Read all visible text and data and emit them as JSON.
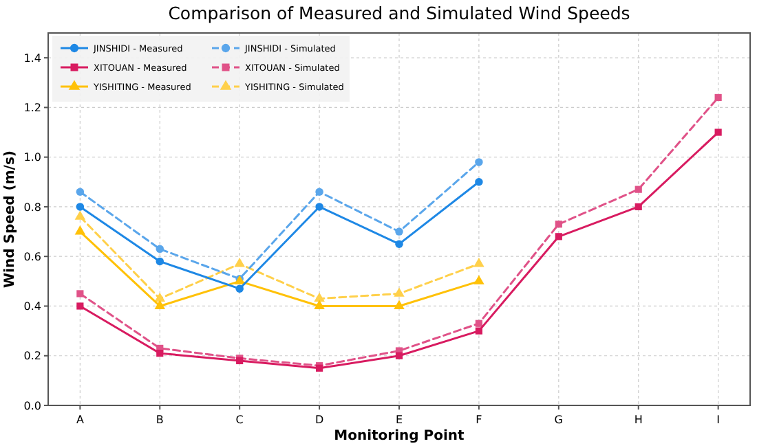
{
  "chart_data": {
    "type": "line",
    "title": "Comparison of Measured and Simulated Wind Speeds",
    "xlabel": "Monitoring Point",
    "ylabel": "Wind Speed (m/s)",
    "categories": [
      "A",
      "B",
      "C",
      "D",
      "E",
      "F",
      "G",
      "H",
      "I"
    ],
    "ylim": [
      0,
      1.5
    ],
    "yticks": [
      {
        "value": 0,
        "label": "0.0"
      },
      0.2,
      0.4,
      0.6,
      0.8,
      {
        "value": 1,
        "label": "1.0"
      },
      1.2,
      1.4
    ],
    "grid": true,
    "legend": "top left",
    "series": [
      {
        "name": "JINSHIDI - Measured",
        "color": "#1e88e5",
        "marker": "circle",
        "line_style": "solid",
        "values": [
          0.8,
          0.58,
          0.47,
          0.8,
          0.65,
          0.9,
          null,
          null,
          null
        ]
      },
      {
        "name": "XITOUAN - Measured",
        "color": "#d81b60",
        "marker": "square",
        "line_style": "solid",
        "values": [
          0.4,
          0.21,
          0.18,
          0.15,
          0.2,
          0.3,
          0.68,
          0.8,
          1.1
        ]
      },
      {
        "name": "YISHITING - Measured",
        "color": "#ffc107",
        "marker": "triangle",
        "line_style": "solid",
        "values": [
          0.7,
          0.4,
          0.5,
          0.4,
          0.4,
          0.5,
          null,
          null,
          null
        ]
      },
      {
        "name": "JINSHIDI - Simulated",
        "color": "#5aa6eb",
        "marker": "circle",
        "line_style": "dashed",
        "values": [
          0.86,
          0.63,
          0.51,
          0.86,
          0.7,
          0.98,
          null,
          null,
          null
        ]
      },
      {
        "name": "XITOUAN - Simulated",
        "color": "#e05288",
        "marker": "square",
        "line_style": "dashed",
        "values": [
          0.45,
          0.23,
          0.19,
          0.16,
          0.22,
          0.33,
          0.73,
          0.87,
          1.24
        ]
      },
      {
        "name": "YISHITING - Simulated",
        "color": "#ffd04a",
        "marker": "triangle",
        "line_style": "dashed",
        "values": [
          0.76,
          0.43,
          0.57,
          0.43,
          0.45,
          0.57,
          null,
          null,
          null
        ]
      }
    ]
  }
}
